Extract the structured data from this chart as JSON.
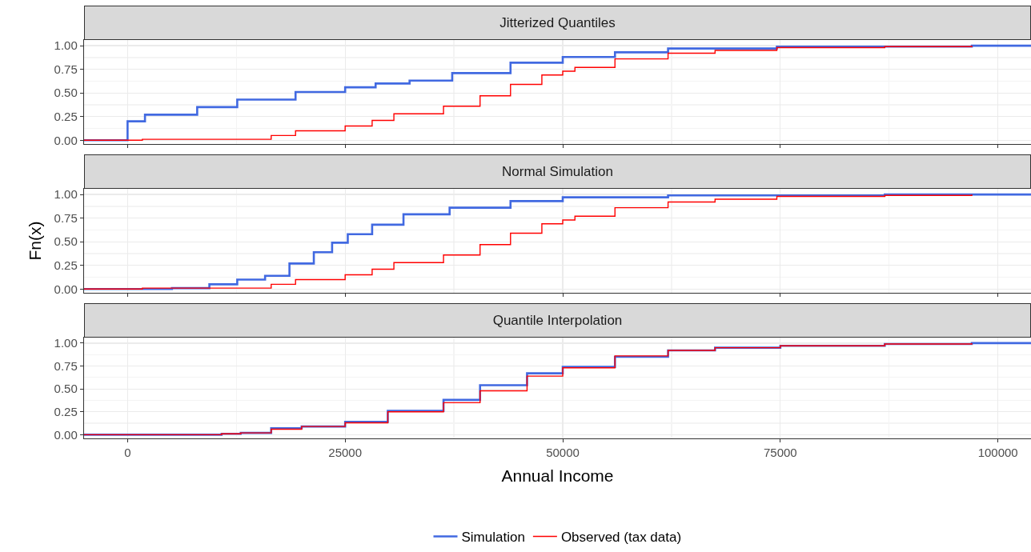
{
  "chart_data": [
    {
      "type": "step",
      "title": "Jitterized Quantiles",
      "xlim": [
        -5000,
        103800
      ],
      "xticks": [
        0,
        25000,
        50000,
        75000,
        100000
      ],
      "ylim": [
        -0.04,
        1.06
      ],
      "yticks": [
        {
          "value": 0,
          "label": "0.00"
        },
        {
          "value": 0.25,
          "label": "0.25"
        },
        {
          "value": 0.5,
          "label": "0.50"
        },
        {
          "value": 0.75,
          "label": "0.75"
        },
        {
          "value": 1,
          "label": "1.00"
        }
      ],
      "tick_labels": "y",
      "grid": true,
      "series": [
        {
          "color": "#4169e1",
          "x": [
            -5000,
            0,
            2000,
            8000,
            12600,
            19300,
            25000,
            28500,
            32400,
            37300,
            44000,
            50000,
            56000,
            62100,
            74600,
            97000,
            103800
          ],
          "values": [
            0,
            0.2,
            0.27,
            0.35,
            0.43,
            0.51,
            0.56,
            0.6,
            0.63,
            0.71,
            0.82,
            0.88,
            0.93,
            0.97,
            0.99,
            1,
            1
          ]
        },
        {
          "color": "#ff0000",
          "x": [
            -5000,
            1700,
            13000,
            16500,
            19300,
            25000,
            28100,
            30600,
            36300,
            40500,
            44000,
            47600,
            50000,
            51400,
            56000,
            62100,
            67500,
            74600,
            87000,
            97000
          ],
          "values": [
            0,
            0.01,
            0.01,
            0.05,
            0.1,
            0.15,
            0.21,
            0.28,
            0.36,
            0.47,
            0.59,
            0.69,
            0.73,
            0.77,
            0.86,
            0.92,
            0.95,
            0.98,
            0.99,
            1
          ]
        }
      ]
    },
    {
      "type": "step",
      "title": "Normal Simulation",
      "ylabel": "Fn(x)",
      "xlim": [
        -5000,
        103800
      ],
      "xticks": [
        0,
        25000,
        50000,
        75000,
        100000
      ],
      "ylim": [
        -0.04,
        1.06
      ],
      "yticks": [
        {
          "value": 0,
          "label": "0.00"
        },
        {
          "value": 0.25,
          "label": "0.25"
        },
        {
          "value": 0.5,
          "label": "0.50"
        },
        {
          "value": 0.75,
          "label": "0.75"
        },
        {
          "value": 1,
          "label": "1.00"
        }
      ],
      "tick_labels": "y",
      "grid": true,
      "series": [
        {
          "color": "#4169e1",
          "x": [
            -5000,
            3000,
            5100,
            9400,
            12600,
            15800,
            18600,
            21400,
            23500,
            25300,
            28100,
            31700,
            37000,
            44000,
            50000,
            62100,
            87000,
            103800
          ],
          "values": [
            0,
            0,
            0.01,
            0.05,
            0.1,
            0.14,
            0.27,
            0.39,
            0.49,
            0.58,
            0.68,
            0.79,
            0.86,
            0.93,
            0.97,
            0.99,
            1,
            1
          ]
        },
        {
          "color": "#ff0000",
          "x": [
            -5000,
            1700,
            13000,
            16500,
            19300,
            25000,
            28100,
            30600,
            36300,
            40500,
            44000,
            47600,
            50000,
            51400,
            56000,
            62100,
            67500,
            74600,
            87000,
            97000
          ],
          "values": [
            0,
            0.01,
            0.01,
            0.05,
            0.1,
            0.15,
            0.21,
            0.28,
            0.36,
            0.47,
            0.59,
            0.69,
            0.73,
            0.77,
            0.86,
            0.92,
            0.95,
            0.98,
            0.99,
            1
          ]
        }
      ]
    },
    {
      "type": "step",
      "title": "Quantile Interpolation",
      "xlabel": "Annual Income",
      "xlim": [
        -5000,
        103800
      ],
      "xticks": [
        0,
        25000,
        50000,
        75000,
        100000
      ],
      "ylim": [
        -0.04,
        1.06
      ],
      "yticks": [
        {
          "value": 0,
          "label": "0.00"
        },
        {
          "value": 0.25,
          "label": "0.25"
        },
        {
          "value": 0.5,
          "label": "0.50"
        },
        {
          "value": 0.75,
          "label": "0.75"
        },
        {
          "value": 1,
          "label": "1.00"
        }
      ],
      "grid": true,
      "legend": "bottom",
      "series": [
        {
          "name": "Simulation",
          "color": "#4169e1",
          "x": [
            -5000,
            10800,
            13000,
            16500,
            20000,
            25000,
            29900,
            36300,
            40500,
            45900,
            50000,
            56000,
            62100,
            67500,
            75000,
            87000,
            97000,
            103800
          ],
          "values": [
            0,
            0.01,
            0.02,
            0.07,
            0.09,
            0.14,
            0.26,
            0.38,
            0.54,
            0.67,
            0.74,
            0.85,
            0.92,
            0.95,
            0.97,
            0.99,
            1,
            1
          ]
        },
        {
          "name": "Observed (tax data)",
          "color": "#ff0000",
          "x": [
            -5000,
            10800,
            13000,
            16500,
            20000,
            25000,
            29900,
            36300,
            40500,
            45900,
            50000,
            56000,
            62100,
            67500,
            75000,
            87000,
            97000
          ],
          "values": [
            0,
            0.01,
            0.02,
            0.06,
            0.09,
            0.13,
            0.25,
            0.35,
            0.48,
            0.64,
            0.73,
            0.86,
            0.92,
            0.95,
            0.97,
            0.99,
            1
          ]
        }
      ]
    }
  ]
}
